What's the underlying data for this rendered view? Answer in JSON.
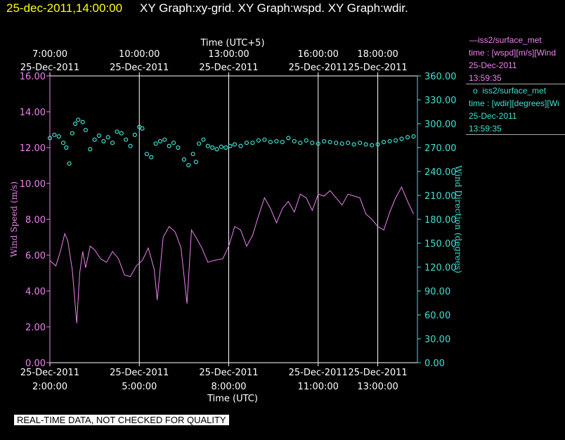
{
  "header": {
    "datetime": "25-dec-2011,14:00:00",
    "graph_label": "XY Graph:xy-grid.  XY Graph:wspd.  XY Graph:wdir.",
    "datetime_color": "#ffff00",
    "label_color": "#ffffff"
  },
  "legend": {
    "wspd": {
      "symbol": "—",
      "line1": "iss2/surface_met",
      "line2": "time : [wspd][m/s][Wind",
      "line3": "25-Dec-2011",
      "line4": "13:59:35",
      "color": "#ee82ee"
    },
    "wdir": {
      "symbol": "o",
      "line1": "iss2/surface_met",
      "line2": "time : [wdir][degrees][Wi",
      "line3": "25-Dec-2011",
      "line4": "13:59:35",
      "color": "#40e0d0"
    }
  },
  "notice": "REAL-TIME DATA, NOT CHECKED FOR QUALITY",
  "chart_data": {
    "type": "line",
    "top_axis": {
      "title": "Time (UTC+5)",
      "ticks": [
        {
          "t": 0,
          "time": "7:00:00",
          "date": "25-Dec-2011"
        },
        {
          "t": 3,
          "time": "10:00:00",
          "date": "25-Dec-2011"
        },
        {
          "t": 6,
          "time": "13:00:00",
          "date": "25-Dec-2011"
        },
        {
          "t": 9,
          "time": "16:00:00",
          "date": "25-Dec-2011"
        },
        {
          "t": 11,
          "time": "18:00:00",
          "date": "25-Dec-2011"
        }
      ]
    },
    "bottom_axis": {
      "title": "Time (UTC)",
      "range": [
        "25-Dec-2011 2:00:00",
        "25-Dec-2011 14:20:00"
      ],
      "ticks": [
        {
          "t": 0,
          "time": "2:00:00",
          "date": "25-Dec-2011"
        },
        {
          "t": 3,
          "time": "5:00:00",
          "date": "25-Dec-2011"
        },
        {
          "t": 6,
          "time": "8:00:00",
          "date": "25-Dec-2011"
        },
        {
          "t": 9,
          "time": "11:00:00",
          "date": "25-Dec-2011"
        },
        {
          "t": 11,
          "time": "13:00:00",
          "date": "25-Dec-2011"
        }
      ]
    },
    "x_range_hours_utc": [
      2.0,
      14.33
    ],
    "left_axis": {
      "title": "Wind Speed (m/s)",
      "range": [
        0,
        16
      ],
      "ticks": [
        "0.00",
        "2.00",
        "4.00",
        "6.00",
        "8.00",
        "10.00",
        "12.00",
        "14.00",
        "16.00"
      ],
      "color": "#ee82ee"
    },
    "right_axis": {
      "title": "Wind Direction (degrees)",
      "range": [
        0,
        360
      ],
      "ticks": [
        "0.00",
        "30.00",
        "60.00",
        "90.00",
        "120.00",
        "150.00",
        "180.00",
        "210.00",
        "240.00",
        "270.00",
        "300.00",
        "330.00",
        "360.00"
      ],
      "color": "#40e0d0"
    },
    "grid": "vertical lines at top/bottom axis ticks",
    "series": [
      {
        "name": "iss2/surface_met wspd",
        "kind": "line",
        "axis": "left",
        "color": "#ee82ee",
        "x_hours_utc": [
          2.0,
          2.2,
          2.35,
          2.5,
          2.6,
          2.75,
          2.9,
          3.0,
          3.1,
          3.2,
          3.35,
          3.5,
          3.7,
          3.9,
          4.1,
          4.3,
          4.5,
          4.7,
          4.9,
          5.1,
          5.3,
          5.5,
          5.6,
          5.8,
          6.0,
          6.2,
          6.4,
          6.6,
          6.75,
          6.9,
          7.1,
          7.3,
          7.5,
          7.8,
          8.0,
          8.2,
          8.4,
          8.6,
          8.8,
          9.0,
          9.2,
          9.4,
          9.6,
          9.8,
          10.0,
          10.2,
          10.4,
          10.6,
          10.8,
          11.0,
          11.2,
          11.4,
          11.6,
          11.8,
          12.0,
          12.2,
          12.4,
          12.6,
          12.8,
          13.0,
          13.2,
          13.4,
          13.6,
          13.8,
          14.0,
          14.2
        ],
        "y": [
          5.7,
          5.4,
          6.2,
          7.2,
          6.8,
          5.2,
          2.2,
          5.0,
          6.2,
          5.3,
          6.5,
          6.3,
          5.8,
          5.6,
          6.2,
          5.8,
          4.9,
          4.8,
          5.4,
          5.7,
          6.4,
          5.2,
          3.5,
          7.0,
          7.6,
          7.3,
          6.4,
          3.3,
          7.4,
          7.0,
          6.4,
          5.6,
          5.7,
          5.8,
          6.5,
          7.6,
          7.4,
          6.5,
          7.1,
          8.2,
          9.2,
          8.6,
          7.8,
          8.6,
          9.0,
          8.4,
          9.4,
          9.2,
          8.5,
          9.4,
          9.3,
          9.6,
          9.2,
          8.8,
          9.4,
          9.3,
          9.2,
          8.3,
          8.0,
          7.6,
          7.4,
          8.4,
          9.2,
          9.8,
          9.0,
          8.3
        ]
      },
      {
        "name": "iss2/surface_met wdir",
        "kind": "scatter",
        "axis": "right",
        "color": "#40e0d0",
        "x_hours_utc": [
          2.0,
          2.15,
          2.3,
          2.45,
          2.55,
          2.65,
          2.75,
          2.85,
          2.95,
          3.1,
          3.2,
          3.35,
          3.5,
          3.65,
          3.8,
          3.95,
          4.1,
          4.25,
          4.4,
          4.55,
          4.7,
          4.85,
          5.0,
          5.1,
          5.25,
          5.4,
          5.55,
          5.7,
          5.85,
          6.0,
          6.15,
          6.3,
          6.5,
          6.65,
          6.8,
          6.9,
          7.0,
          7.15,
          7.3,
          7.45,
          7.6,
          7.75,
          7.9,
          8.05,
          8.2,
          8.4,
          8.6,
          8.8,
          9.0,
          9.2,
          9.4,
          9.6,
          9.8,
          10.0,
          10.2,
          10.4,
          10.6,
          10.8,
          11.0,
          11.2,
          11.4,
          11.6,
          11.8,
          12.0,
          12.2,
          12.4,
          12.6,
          12.8,
          13.0,
          13.2,
          13.4,
          13.6,
          13.8,
          14.0,
          14.2
        ],
        "y": [
          282,
          286,
          284,
          276,
          270,
          250,
          288,
          300,
          305,
          302,
          292,
          268,
          280,
          285,
          278,
          283,
          276,
          290,
          288,
          280,
          272,
          286,
          296,
          294,
          262,
          258,
          275,
          278,
          280,
          272,
          276,
          270,
          255,
          248,
          262,
          252,
          275,
          280,
          272,
          270,
          268,
          271,
          270,
          272,
          274,
          272,
          276,
          276,
          279,
          280,
          277,
          278,
          277,
          282,
          278,
          276,
          279,
          276,
          275,
          278,
          277,
          276,
          275,
          276,
          274,
          276,
          274,
          273,
          274,
          277,
          278,
          279,
          281,
          283,
          284
        ]
      }
    ]
  }
}
